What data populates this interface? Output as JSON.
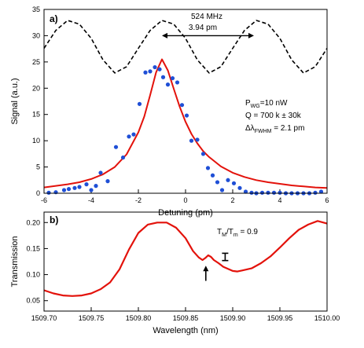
{
  "chart_data": [
    {
      "panel_label": "a)",
      "type": "scatter",
      "xlabel": "Detuning (pm)",
      "ylabel": "Signal (a.u.)",
      "xlim": [
        -6,
        6
      ],
      "ylim": [
        0,
        35
      ],
      "xticks": [
        -6,
        -4,
        -2,
        0,
        2,
        4,
        6
      ],
      "yticks": [
        0,
        5,
        10,
        15,
        20,
        25,
        30,
        35
      ],
      "colors": {
        "points": "#1f4fd6",
        "fit": "#e3120b",
        "reference": "#000000"
      },
      "series": [
        {
          "kind": "points",
          "x": [
            -5.8,
            -5.5,
            -5.15,
            -4.95,
            -4.7,
            -4.5,
            -4.2,
            -4.0,
            -3.8,
            -3.6,
            -3.3,
            -2.95,
            -2.65,
            -2.4,
            -2.2,
            -1.95,
            -1.7,
            -1.5,
            -1.3,
            -1.1,
            -0.95,
            -0.75,
            -0.55,
            -0.35,
            -0.15,
            0.05,
            0.25,
            0.5,
            0.75,
            0.95,
            1.15,
            1.35,
            1.55,
            1.8,
            2.05,
            2.3,
            2.55,
            2.8,
            3.0,
            3.25,
            3.5,
            3.75,
            4.0,
            4.25,
            4.5,
            4.75,
            5.0,
            5.25,
            5.5,
            5.75
          ],
          "y": [
            0.1,
            0.2,
            0.6,
            0.8,
            1.0,
            1.2,
            1.7,
            0.6,
            1.4,
            3.9,
            2.3,
            8.8,
            6.8,
            10.8,
            11.2,
            17.0,
            23.0,
            23.2,
            24.0,
            23.6,
            22.1,
            20.7,
            21.9,
            21.1,
            16.8,
            14.8,
            10.0,
            10.2,
            7.5,
            4.8,
            3.4,
            2.1,
            0.6,
            2.5,
            1.9,
            1.0,
            0.3,
            0.1,
            0.0,
            0.1,
            0.1,
            0.1,
            0.1,
            0.0,
            0.0,
            0.0,
            0.0,
            0.0,
            0.1,
            0.3
          ]
        },
        {
          "kind": "fit",
          "x": [
            -6.0,
            -5.5,
            -5.0,
            -4.5,
            -4.0,
            -3.5,
            -3.0,
            -2.5,
            -2.0,
            -1.75,
            -1.5,
            -1.25,
            -1.0,
            -0.75,
            -0.5,
            -0.25,
            0.0,
            0.25,
            0.5,
            0.75,
            1.0,
            1.5,
            2.0,
            2.5,
            3.0,
            3.5,
            4.0,
            4.5,
            5.0,
            5.5,
            6.0
          ],
          "y": [
            1.1,
            1.4,
            1.7,
            2.1,
            2.7,
            3.6,
            5.0,
            7.4,
            11.6,
            14.6,
            18.7,
            23.0,
            25.5,
            23.4,
            19.9,
            16.5,
            13.6,
            11.3,
            9.5,
            8.0,
            6.9,
            5.1,
            3.9,
            3.1,
            2.5,
            2.1,
            1.8,
            1.5,
            1.3,
            1.1,
            1.0
          ]
        },
        {
          "kind": "reference",
          "style": "dashed",
          "x": [
            -6.0,
            -5.5,
            -5.0,
            -4.5,
            -4.0,
            -3.5,
            -3.0,
            -2.5,
            -2.0,
            -1.5,
            -1.0,
            -0.5,
            0.0,
            0.5,
            1.0,
            1.5,
            2.0,
            2.5,
            3.0,
            3.5,
            4.0,
            4.5,
            5.0,
            5.5,
            6.0
          ],
          "y": [
            27.6,
            31.0,
            32.9,
            32.2,
            29.5,
            25.4,
            22.9,
            24.1,
            27.6,
            31.0,
            32.9,
            32.2,
            29.5,
            25.4,
            22.9,
            24.1,
            27.6,
            31.0,
            32.9,
            32.2,
            29.5,
            25.4,
            22.9,
            24.1,
            27.6
          ]
        }
      ],
      "annotations": {
        "spacing_freq": "524 MHz",
        "spacing_wl": "3.94 pm",
        "arrow_from_x": -1.0,
        "arrow_to_x": 2.9,
        "arrow_y": 30.0,
        "power_label": "P",
        "power_sub": "WG",
        "power_value": "=10 nW",
        "q_text": "Q = 700 k ± 30k",
        "fwhm_label": "Δλ",
        "fwhm_sub": "FWHM",
        "fwhm_value": " = 2.1 pm"
      }
    },
    {
      "panel_label": "b)",
      "type": "line",
      "xlabel": "Wavelength (nm)",
      "ylabel": "Transmission",
      "xlim": [
        1509.7,
        1510.0
      ],
      "ylim": [
        0.03,
        0.22
      ],
      "xticks": [
        "1509.70",
        "1509.75",
        "1509.80",
        "1509.85",
        "1509.90",
        "1509.95",
        "1510.00"
      ],
      "yticks": [
        "0.05",
        "0.10",
        "0.15",
        "0.20"
      ],
      "colors": {
        "line": "#e3120b"
      },
      "series": [
        {
          "kind": "line",
          "x": [
            1509.7,
            1509.71,
            1509.72,
            1509.73,
            1509.74,
            1509.75,
            1509.76,
            1509.77,
            1509.78,
            1509.79,
            1509.8,
            1509.81,
            1509.82,
            1509.83,
            1509.84,
            1509.85,
            1509.858,
            1509.864,
            1509.868,
            1509.871,
            1509.874,
            1509.877,
            1509.88,
            1509.885,
            1509.89,
            1509.895,
            1509.9,
            1509.905,
            1509.91,
            1509.92,
            1509.93,
            1509.94,
            1509.95,
            1509.96,
            1509.97,
            1509.98,
            1509.99,
            1510.0
          ],
          "y": [
            0.07,
            0.064,
            0.06,
            0.059,
            0.06,
            0.064,
            0.072,
            0.085,
            0.11,
            0.148,
            0.18,
            0.196,
            0.2,
            0.2,
            0.19,
            0.17,
            0.145,
            0.133,
            0.128,
            0.132,
            0.137,
            0.134,
            0.128,
            0.122,
            0.115,
            0.111,
            0.107,
            0.106,
            0.108,
            0.112,
            0.122,
            0.135,
            0.152,
            0.17,
            0.186,
            0.196,
            0.203,
            0.198
          ]
        }
      ],
      "annotations": {
        "ratio_label": "T",
        "ratio_sub_1": "M",
        "ratio_sep": "/T",
        "ratio_sub_2": "m",
        "ratio_value": " = 0.9",
        "arrow_x": 1509.8715,
        "arrow_y_top": 0.117,
        "arrow_y_bottom": 0.088,
        "errorbar_x": 1509.892,
        "errorbar_y_top": 0.141,
        "errorbar_y_bottom": 0.127
      }
    }
  ]
}
